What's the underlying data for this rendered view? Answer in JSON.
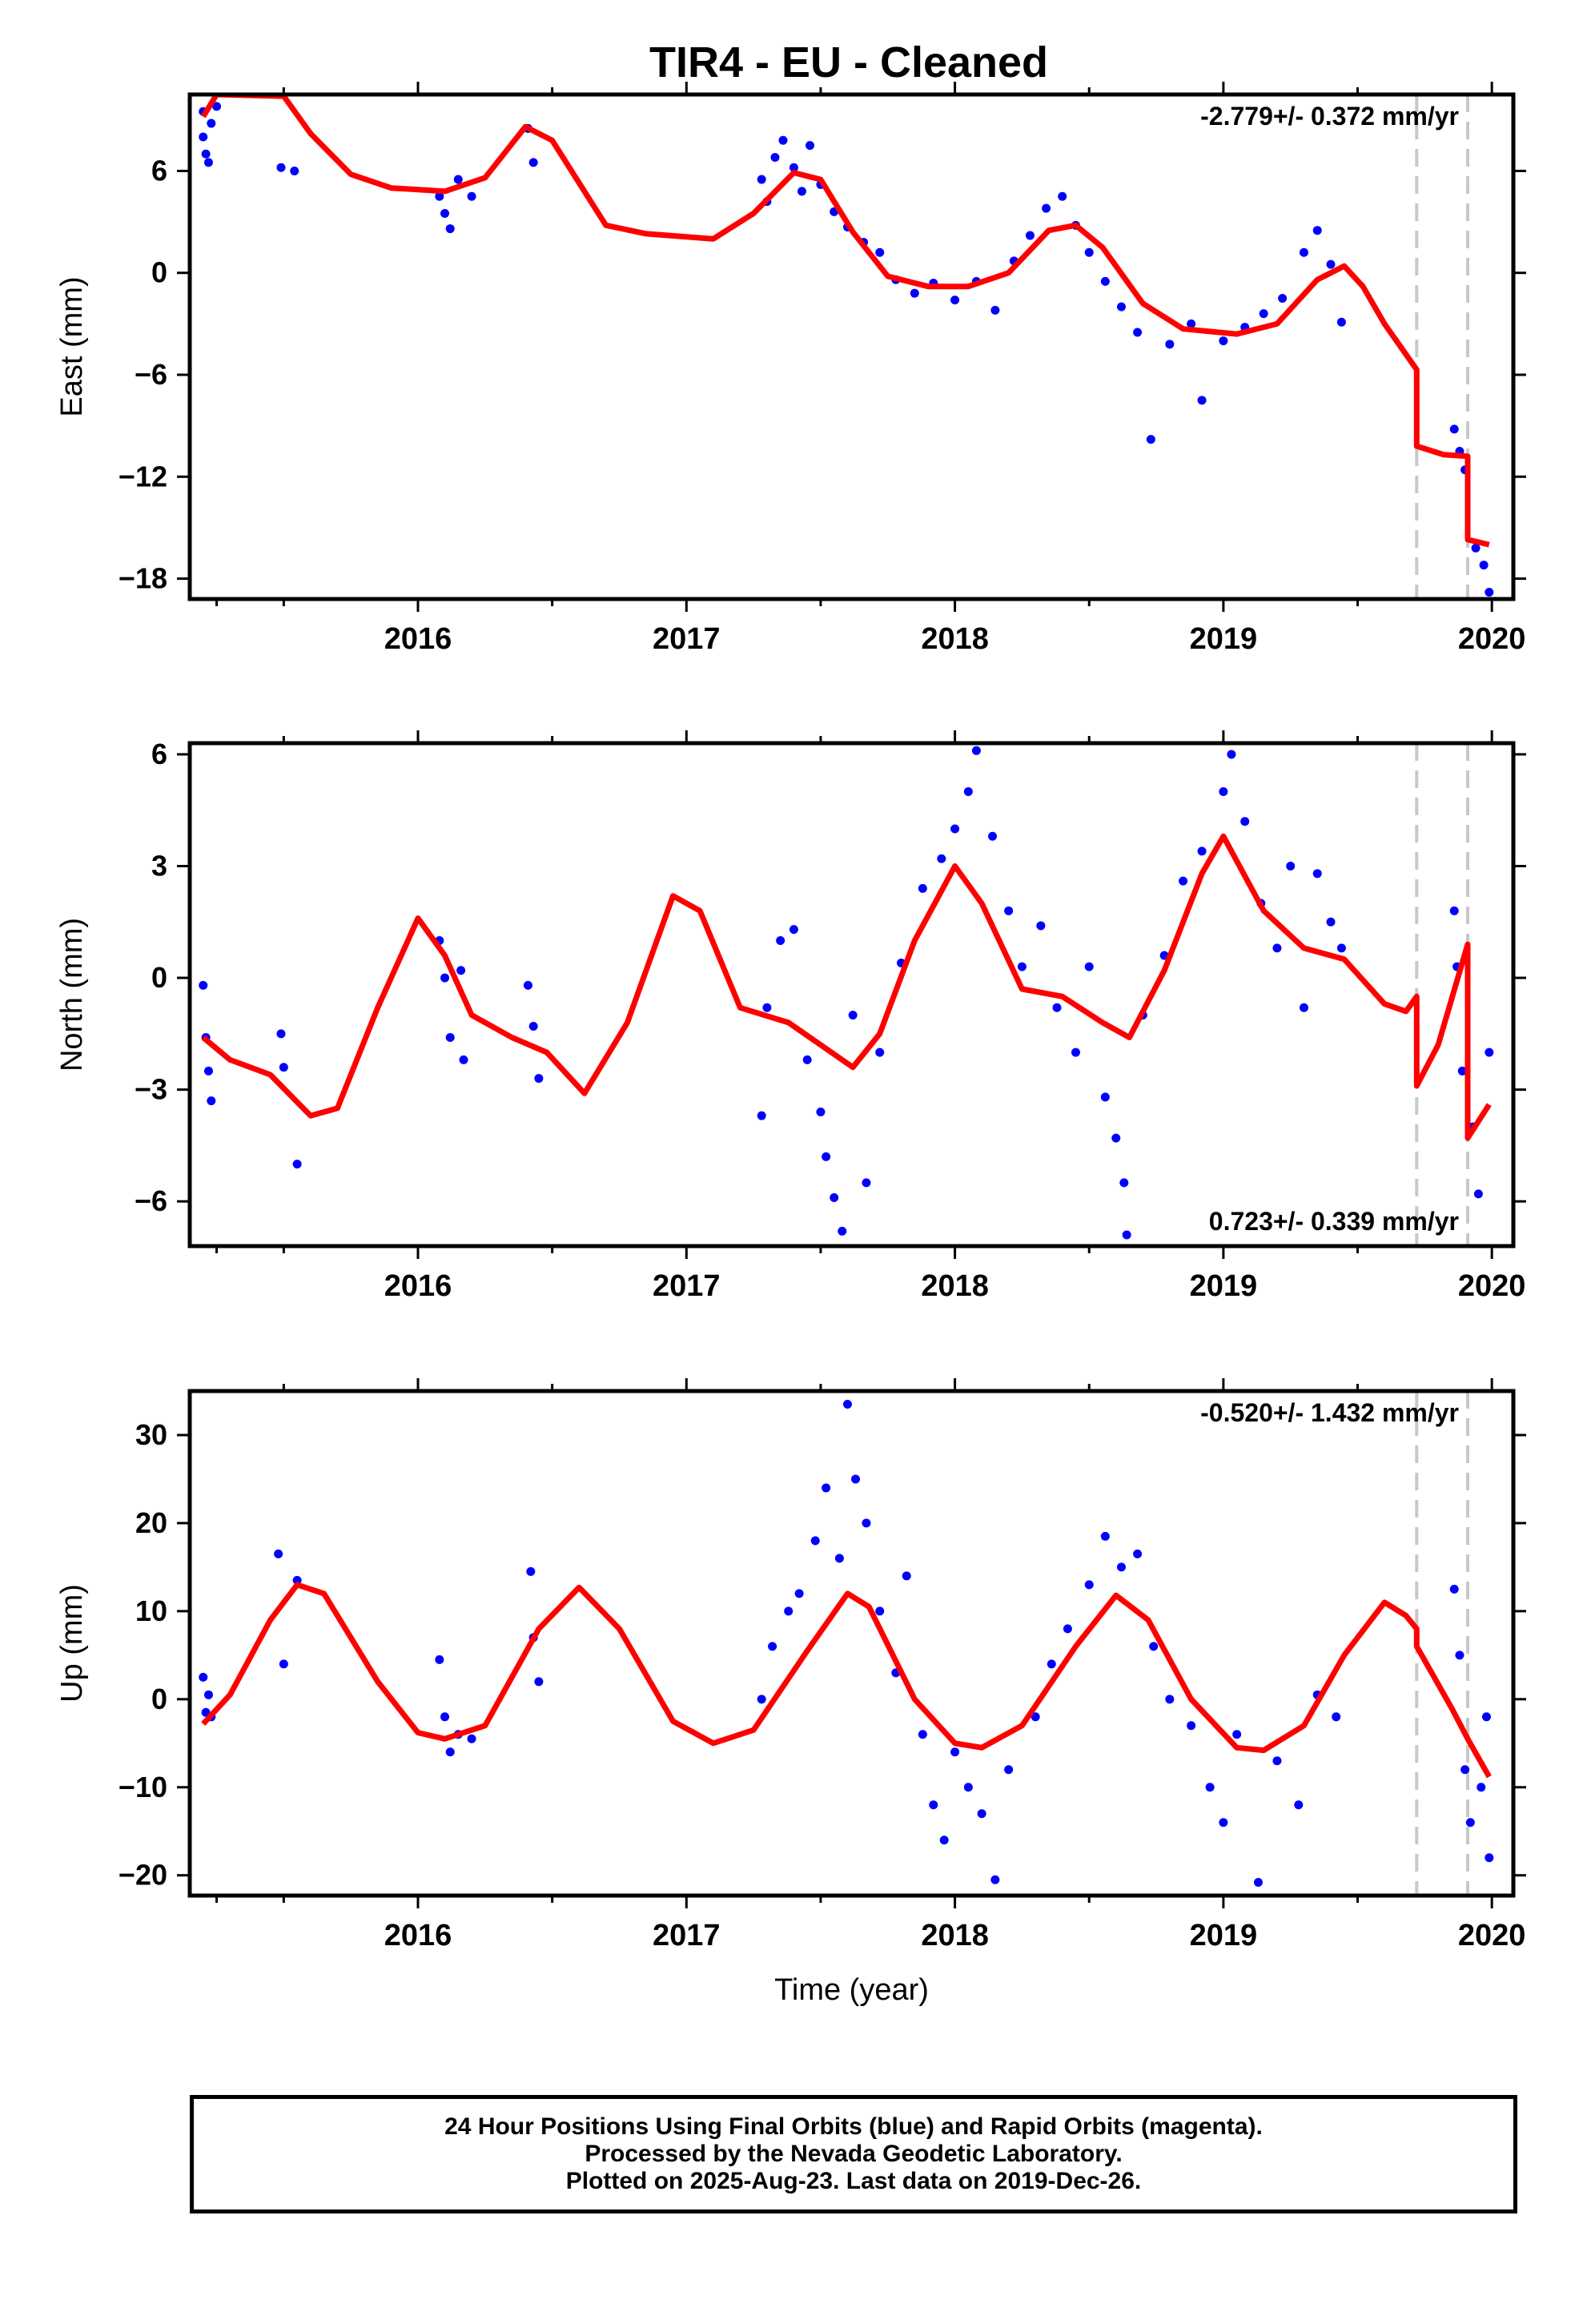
{
  "title": "TIR4  - EU - Cleaned",
  "chart_data": [
    {
      "type": "scatter",
      "id": "east",
      "ylabel": "East (mm)",
      "xlabel": "",
      "xlim": [
        2015.15,
        2020.08
      ],
      "ylim": [
        -19.2,
        10.5
      ],
      "yticks": [
        6,
        0,
        -6,
        -12,
        -18
      ],
      "ytick_labels": [
        "6",
        "0",
        "−6",
        "−12",
        "−18"
      ],
      "xticks": [
        2016,
        2017,
        2018,
        2019,
        2020
      ],
      "xtick_labels": [
        "2016",
        "2017",
        "2018",
        "2019",
        "2020"
      ],
      "rate_annotation": "-2.779+/- 0.372 mm/yr",
      "rate_position": "top-right",
      "event_lines": [
        2019.72,
        2019.91
      ],
      "observations_blue": [
        [
          2015.2,
          9.5
        ],
        [
          2015.2,
          8
        ],
        [
          2015.21,
          7
        ],
        [
          2015.22,
          6.5
        ],
        [
          2015.23,
          8.8
        ],
        [
          2015.25,
          9.8
        ],
        [
          2015.49,
          6.2
        ],
        [
          2015.54,
          6.0
        ],
        [
          2016.08,
          4.5
        ],
        [
          2016.1,
          3.5
        ],
        [
          2016.12,
          2.6
        ],
        [
          2016.15,
          5.5
        ],
        [
          2016.2,
          4.5
        ],
        [
          2016.41,
          8.5
        ],
        [
          2016.43,
          6.5
        ],
        [
          2017.28,
          5.5
        ],
        [
          2017.3,
          4.2
        ],
        [
          2017.33,
          6.8
        ],
        [
          2017.36,
          7.8
        ],
        [
          2017.4,
          6.2
        ],
        [
          2017.43,
          4.8
        ],
        [
          2017.46,
          7.5
        ],
        [
          2017.5,
          5.2
        ],
        [
          2017.55,
          3.6
        ],
        [
          2017.6,
          2.7
        ],
        [
          2017.66,
          1.8
        ],
        [
          2017.72,
          1.2
        ],
        [
          2017.78,
          -0.4
        ],
        [
          2017.85,
          -1.2
        ],
        [
          2017.92,
          -0.6
        ],
        [
          2018.0,
          -1.6
        ],
        [
          2018.08,
          -0.5
        ],
        [
          2018.15,
          -2.2
        ],
        [
          2018.22,
          0.7
        ],
        [
          2018.28,
          2.2
        ],
        [
          2018.34,
          3.8
        ],
        [
          2018.4,
          4.5
        ],
        [
          2018.45,
          2.8
        ],
        [
          2018.5,
          1.2
        ],
        [
          2018.56,
          -0.5
        ],
        [
          2018.62,
          -2.0
        ],
        [
          2018.68,
          -3.5
        ],
        [
          2018.73,
          -9.8
        ],
        [
          2018.8,
          -4.2
        ],
        [
          2018.88,
          -3.0
        ],
        [
          2018.92,
          -7.5
        ],
        [
          2019.0,
          -4.0
        ],
        [
          2019.08,
          -3.2
        ],
        [
          2019.15,
          -2.4
        ],
        [
          2019.22,
          -1.5
        ],
        [
          2019.3,
          1.2
        ],
        [
          2019.35,
          2.5
        ],
        [
          2019.4,
          0.5
        ],
        [
          2019.44,
          -2.9
        ],
        [
          2019.86,
          -9.2
        ],
        [
          2019.88,
          -10.5
        ],
        [
          2019.9,
          -11.6
        ],
        [
          2019.94,
          -16.2
        ],
        [
          2019.97,
          -17.2
        ],
        [
          2019.99,
          -18.8
        ]
      ],
      "observations_magenta": [],
      "model": [
        [
          2015.2,
          9.2
        ],
        [
          2015.25,
          10.5
        ],
        [
          2015.5,
          10.4
        ],
        [
          2015.6,
          8.2
        ],
        [
          2015.75,
          5.8
        ],
        [
          2015.9,
          5.0
        ],
        [
          2016.1,
          4.8
        ],
        [
          2016.25,
          5.6
        ],
        [
          2016.4,
          8.6
        ],
        [
          2016.5,
          7.8
        ],
        [
          2016.7,
          2.8
        ],
        [
          2016.85,
          2.3
        ],
        [
          2017.1,
          2.0
        ],
        [
          2017.25,
          3.5
        ],
        [
          2017.4,
          5.9
        ],
        [
          2017.5,
          5.5
        ],
        [
          2017.62,
          2.4
        ],
        [
          2017.75,
          -0.2
        ],
        [
          2017.9,
          -0.8
        ],
        [
          2018.05,
          -0.8
        ],
        [
          2018.2,
          0.0
        ],
        [
          2018.35,
          2.5
        ],
        [
          2018.45,
          2.8
        ],
        [
          2018.55,
          1.5
        ],
        [
          2018.7,
          -1.8
        ],
        [
          2018.85,
          -3.3
        ],
        [
          2019.05,
          -3.6
        ],
        [
          2019.2,
          -3.0
        ],
        [
          2019.35,
          -0.4
        ],
        [
          2019.45,
          0.4
        ],
        [
          2019.52,
          -0.8
        ],
        [
          2019.6,
          -3.0
        ],
        [
          2019.68,
          -4.8
        ],
        [
          2019.72,
          -5.7
        ],
        [
          2019.72,
          -10.2
        ],
        [
          2019.82,
          -10.7
        ],
        [
          2019.91,
          -10.8
        ],
        [
          2019.91,
          -15.7
        ],
        [
          2019.99,
          -16.0
        ]
      ]
    },
    {
      "type": "scatter",
      "id": "north",
      "ylabel": "North (mm)",
      "xlabel": "",
      "xlim": [
        2015.15,
        2020.08
      ],
      "ylim": [
        -7.2,
        6.3
      ],
      "yticks": [
        6,
        3,
        0,
        -3,
        -6
      ],
      "ytick_labels": [
        "6",
        "3",
        "0",
        "−3",
        "−6"
      ],
      "xticks": [
        2016,
        2017,
        2018,
        2019,
        2020
      ],
      "xtick_labels": [
        "2016",
        "2017",
        "2018",
        "2019",
        "2020"
      ],
      "rate_annotation": "0.723+/- 0.339 mm/yr",
      "rate_position": "bottom-right",
      "event_lines": [
        2019.72,
        2019.91
      ],
      "observations_blue": [
        [
          2015.2,
          -0.2
        ],
        [
          2015.21,
          -1.6
        ],
        [
          2015.22,
          -2.5
        ],
        [
          2015.23,
          -3.3
        ],
        [
          2015.49,
          -1.5
        ],
        [
          2015.5,
          -2.4
        ],
        [
          2015.55,
          -5.0
        ],
        [
          2016.08,
          1.0
        ],
        [
          2016.1,
          0.0
        ],
        [
          2016.12,
          -1.6
        ],
        [
          2016.16,
          0.2
        ],
        [
          2016.17,
          -2.2
        ],
        [
          2016.41,
          -0.2
        ],
        [
          2016.43,
          -1.3
        ],
        [
          2016.45,
          -2.7
        ],
        [
          2017.28,
          -3.7
        ],
        [
          2017.3,
          -0.8
        ],
        [
          2017.35,
          1.0
        ],
        [
          2017.4,
          1.3
        ],
        [
          2017.45,
          -2.2
        ],
        [
          2017.5,
          -3.6
        ],
        [
          2017.52,
          -4.8
        ],
        [
          2017.55,
          -5.9
        ],
        [
          2017.58,
          -6.8
        ],
        [
          2017.62,
          -1.0
        ],
        [
          2017.67,
          -5.5
        ],
        [
          2017.72,
          -2.0
        ],
        [
          2017.8,
          0.4
        ],
        [
          2017.88,
          2.4
        ],
        [
          2017.95,
          3.2
        ],
        [
          2018.0,
          4.0
        ],
        [
          2018.05,
          5.0
        ],
        [
          2018.08,
          6.1
        ],
        [
          2018.14,
          3.8
        ],
        [
          2018.2,
          1.8
        ],
        [
          2018.25,
          0.3
        ],
        [
          2018.32,
          1.4
        ],
        [
          2018.38,
          -0.8
        ],
        [
          2018.45,
          -2.0
        ],
        [
          2018.5,
          0.3
        ],
        [
          2018.56,
          -3.2
        ],
        [
          2018.6,
          -4.3
        ],
        [
          2018.63,
          -5.5
        ],
        [
          2018.64,
          -6.9
        ],
        [
          2018.7,
          -1.0
        ],
        [
          2018.78,
          0.6
        ],
        [
          2018.85,
          2.6
        ],
        [
          2018.92,
          3.4
        ],
        [
          2019.0,
          5.0
        ],
        [
          2019.03,
          6.0
        ],
        [
          2019.08,
          4.2
        ],
        [
          2019.14,
          2.0
        ],
        [
          2019.2,
          0.8
        ],
        [
          2019.25,
          3.0
        ],
        [
          2019.3,
          -0.8
        ],
        [
          2019.35,
          2.8
        ],
        [
          2019.4,
          1.5
        ],
        [
          2019.44,
          0.8
        ],
        [
          2019.86,
          1.8
        ],
        [
          2019.87,
          0.3
        ],
        [
          2019.89,
          -2.5
        ],
        [
          2019.93,
          -4.0
        ],
        [
          2019.95,
          -5.8
        ],
        [
          2019.99,
          -2.0
        ]
      ],
      "observations_magenta": [],
      "model": [
        [
          2015.2,
          -1.6
        ],
        [
          2015.3,
          -2.2
        ],
        [
          2015.45,
          -2.6
        ],
        [
          2015.6,
          -3.7
        ],
        [
          2015.7,
          -3.5
        ],
        [
          2015.85,
          -0.8
        ],
        [
          2016.0,
          1.6
        ],
        [
          2016.1,
          0.6
        ],
        [
          2016.2,
          -1.0
        ],
        [
          2016.35,
          -1.6
        ],
        [
          2016.48,
          -2.0
        ],
        [
          2016.62,
          -3.1
        ],
        [
          2016.78,
          -1.2
        ],
        [
          2016.95,
          2.2
        ],
        [
          2017.05,
          1.8
        ],
        [
          2017.2,
          -0.8
        ],
        [
          2017.38,
          -1.2
        ],
        [
          2017.5,
          -1.8
        ],
        [
          2017.62,
          -2.4
        ],
        [
          2017.72,
          -1.5
        ],
        [
          2017.85,
          1.0
        ],
        [
          2018.0,
          3.0
        ],
        [
          2018.1,
          2.0
        ],
        [
          2018.25,
          -0.3
        ],
        [
          2018.4,
          -0.5
        ],
        [
          2018.55,
          -1.2
        ],
        [
          2018.65,
          -1.6
        ],
        [
          2018.78,
          0.2
        ],
        [
          2018.92,
          2.8
        ],
        [
          2019.0,
          3.8
        ],
        [
          2019.15,
          1.8
        ],
        [
          2019.3,
          0.8
        ],
        [
          2019.45,
          0.5
        ],
        [
          2019.6,
          -0.7
        ],
        [
          2019.68,
          -0.9
        ],
        [
          2019.72,
          -0.5
        ],
        [
          2019.72,
          -2.9
        ],
        [
          2019.8,
          -1.8
        ],
        [
          2019.91,
          0.9
        ],
        [
          2019.91,
          -4.3
        ],
        [
          2019.99,
          -3.4
        ]
      ]
    },
    {
      "type": "scatter",
      "id": "up",
      "ylabel": "Up (mm)",
      "xlabel": "Time (year)",
      "xlim": [
        2015.15,
        2020.08
      ],
      "ylim": [
        -22.3,
        35
      ],
      "yticks": [
        30,
        20,
        10,
        0,
        -10,
        -20
      ],
      "ytick_labels": [
        "30",
        "20",
        "10",
        "0",
        "−10",
        "−20"
      ],
      "xticks": [
        2016,
        2017,
        2018,
        2019,
        2020
      ],
      "xtick_labels": [
        "2016",
        "2017",
        "2018",
        "2019",
        "2020"
      ],
      "rate_annotation": "-0.520+/- 1.432 mm/yr",
      "rate_position": "top-right",
      "event_lines": [
        2019.72,
        2019.91
      ],
      "observations_blue": [
        [
          2015.2,
          2.5
        ],
        [
          2015.21,
          -1.5
        ],
        [
          2015.22,
          0.5
        ],
        [
          2015.23,
          -2.0
        ],
        [
          2015.48,
          16.5
        ],
        [
          2015.5,
          4.0
        ],
        [
          2015.55,
          13.5
        ],
        [
          2016.08,
          4.5
        ],
        [
          2016.1,
          -2.0
        ],
        [
          2016.12,
          -6.0
        ],
        [
          2016.15,
          -4.0
        ],
        [
          2016.2,
          -4.5
        ],
        [
          2016.42,
          14.5
        ],
        [
          2016.43,
          7.0
        ],
        [
          2016.45,
          2.0
        ],
        [
          2017.28,
          0.0
        ],
        [
          2017.32,
          6.0
        ],
        [
          2017.38,
          10.0
        ],
        [
          2017.42,
          12.0
        ],
        [
          2017.48,
          18.0
        ],
        [
          2017.52,
          24.0
        ],
        [
          2017.57,
          16.0
        ],
        [
          2017.6,
          33.5
        ],
        [
          2017.63,
          25.0
        ],
        [
          2017.67,
          20.0
        ],
        [
          2017.72,
          10.0
        ],
        [
          2017.78,
          3.0
        ],
        [
          2017.82,
          14.0
        ],
        [
          2017.88,
          -4.0
        ],
        [
          2017.92,
          -12.0
        ],
        [
          2017.96,
          -16.0
        ],
        [
          2018.0,
          -6.0
        ],
        [
          2018.05,
          -10.0
        ],
        [
          2018.1,
          -13.0
        ],
        [
          2018.15,
          -20.5
        ],
        [
          2018.2,
          -8.0
        ],
        [
          2018.3,
          -2.0
        ],
        [
          2018.36,
          4.0
        ],
        [
          2018.42,
          8.0
        ],
        [
          2018.5,
          13.0
        ],
        [
          2018.56,
          18.5
        ],
        [
          2018.62,
          15.0
        ],
        [
          2018.68,
          16.5
        ],
        [
          2018.74,
          6.0
        ],
        [
          2018.8,
          0.0
        ],
        [
          2018.88,
          -3.0
        ],
        [
          2018.95,
          -10.0
        ],
        [
          2019.0,
          -14.0
        ],
        [
          2019.05,
          -4.0
        ],
        [
          2019.13,
          -20.8
        ],
        [
          2019.2,
          -7.0
        ],
        [
          2019.28,
          -12.0
        ],
        [
          2019.35,
          0.5
        ],
        [
          2019.42,
          -2.0
        ],
        [
          2019.86,
          12.5
        ],
        [
          2019.88,
          5.0
        ],
        [
          2019.9,
          -8.0
        ],
        [
          2019.92,
          -14.0
        ],
        [
          2019.96,
          -10.0
        ],
        [
          2019.98,
          -2.0
        ],
        [
          2019.99,
          -18.0
        ]
      ],
      "observations_magenta": [],
      "model": [
        [
          2015.2,
          -2.8
        ],
        [
          2015.3,
          0.5
        ],
        [
          2015.45,
          9.0
        ],
        [
          2015.55,
          13.0
        ],
        [
          2015.65,
          12.0
        ],
        [
          2015.85,
          2.0
        ],
        [
          2016.0,
          -3.8
        ],
        [
          2016.1,
          -4.5
        ],
        [
          2016.25,
          -3.0
        ],
        [
          2016.45,
          8.0
        ],
        [
          2016.6,
          12.7
        ],
        [
          2016.75,
          8.0
        ],
        [
          2016.95,
          -2.5
        ],
        [
          2017.1,
          -5.0
        ],
        [
          2017.25,
          -3.5
        ],
        [
          2017.45,
          5.5
        ],
        [
          2017.6,
          12.0
        ],
        [
          2017.68,
          10.5
        ],
        [
          2017.85,
          0.0
        ],
        [
          2018.0,
          -5.0
        ],
        [
          2018.1,
          -5.5
        ],
        [
          2018.25,
          -3.0
        ],
        [
          2018.45,
          6.0
        ],
        [
          2018.6,
          11.8
        ],
        [
          2018.72,
          9.0
        ],
        [
          2018.88,
          0.0
        ],
        [
          2019.05,
          -5.5
        ],
        [
          2019.15,
          -5.8
        ],
        [
          2019.3,
          -3.0
        ],
        [
          2019.45,
          5.0
        ],
        [
          2019.6,
          11.0
        ],
        [
          2019.68,
          9.5
        ],
        [
          2019.72,
          8.0
        ],
        [
          2019.72,
          6.0
        ],
        [
          2019.85,
          -1.0
        ],
        [
          2019.91,
          -4.5
        ],
        [
          2019.99,
          -8.8
        ]
      ]
    }
  ],
  "caption": {
    "line1": "24 Hour Positions Using Final Orbits (blue) and Rapid Orbits (magenta).",
    "line2": "Processed by the Nevada Geodetic Laboratory.",
    "line3": "Plotted on 2025-Aug-23. Last data on 2019-Dec-26."
  },
  "colors": {
    "final_orbits": "#0000ff",
    "rapid_orbits": "#ff00ff",
    "model": "#ff0000",
    "event_line": "#c8c8c8",
    "frame": "#000000"
  }
}
